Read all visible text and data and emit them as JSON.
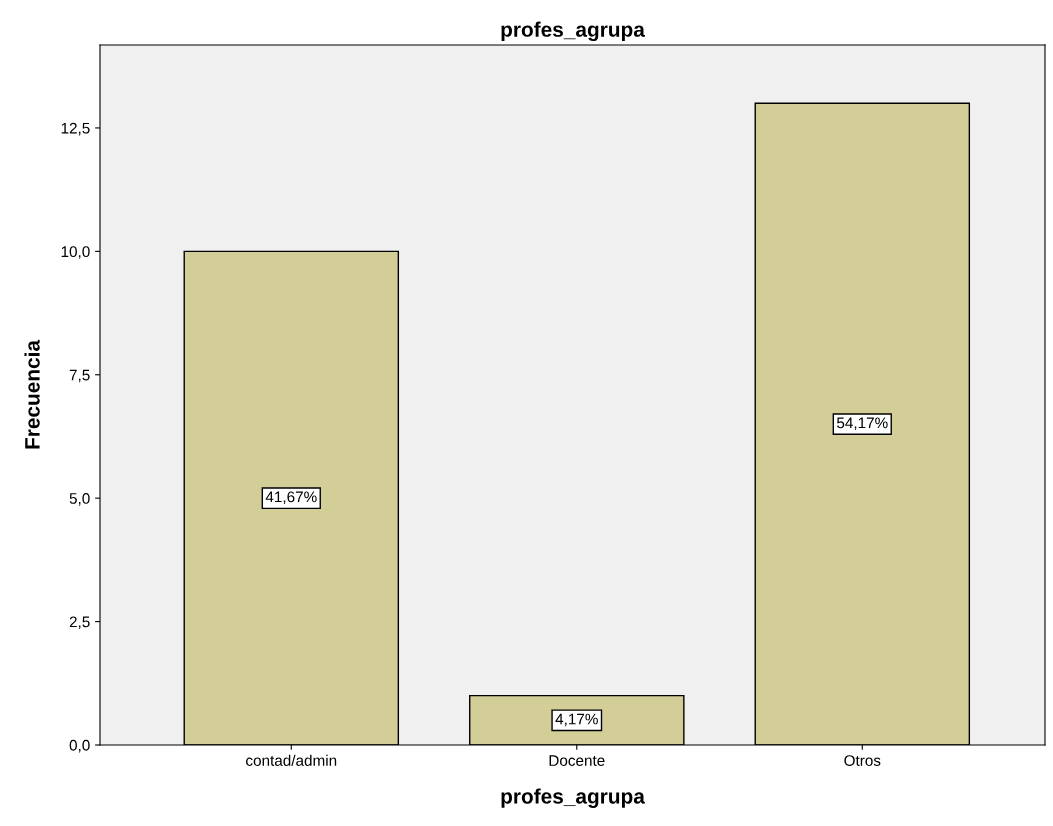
{
  "chart_data": {
    "type": "bar",
    "title": "profes_agrupa",
    "xlabel": "profes_agrupa",
    "ylabel": "Frecuencia",
    "categories": [
      "contad/admin",
      "Docente",
      "Otros"
    ],
    "values": [
      10,
      1,
      13
    ],
    "color": "#d3ce97",
    "annotations": [
      "41,67%",
      "4,17%",
      "54,17%"
    ],
    "ylim": [
      0,
      14.18
    ],
    "yticks": [
      {
        "value": 0,
        "label": "0,0"
      },
      {
        "value": 2.5,
        "label": "2,5"
      },
      {
        "value": 5,
        "label": "5,0"
      },
      {
        "value": 7.5,
        "label": "7,5"
      },
      {
        "value": 10,
        "label": "10,0"
      },
      {
        "value": 12.5,
        "label": "12,5"
      }
    ],
    "grid": false
  }
}
